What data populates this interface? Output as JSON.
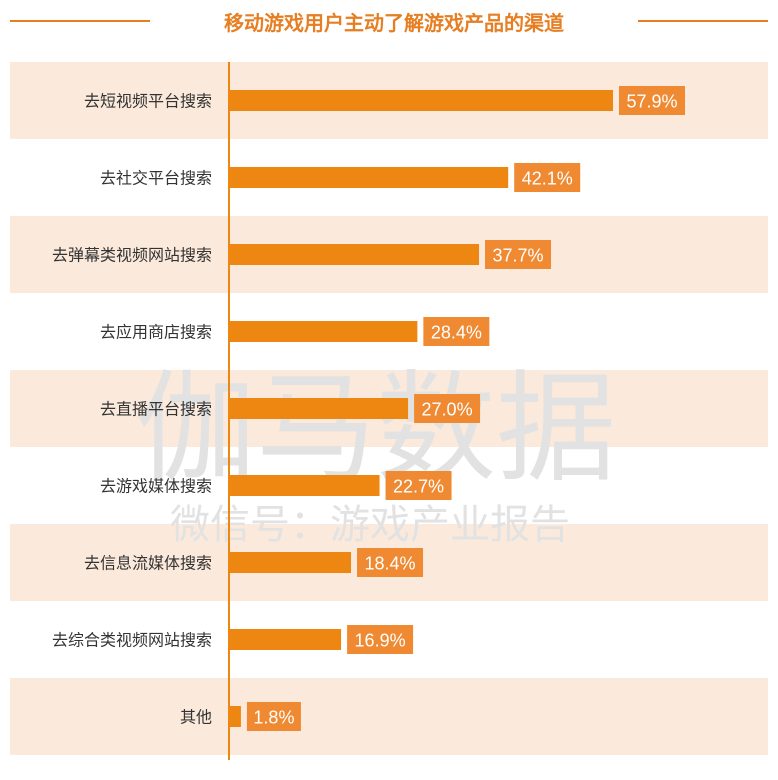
{
  "chart_data": {
    "type": "bar",
    "orientation": "horizontal",
    "title": "移动游戏用户主动了解游戏产品的渠道",
    "categories": [
      "去短视频平台搜索",
      "去社交平台搜索",
      "去弹幕类视频网站搜索",
      "去应用商店搜索",
      "去直播平台搜索",
      "去游戏媒体搜索",
      "去信息流媒体搜索",
      "去综合类视频网站搜索",
      "其他"
    ],
    "values": [
      57.9,
      42.1,
      37.7,
      28.4,
      27.0,
      22.7,
      18.4,
      16.9,
      1.8
    ],
    "value_labels": [
      "57.9%",
      "42.1%",
      "37.7%",
      "28.4%",
      "27.0%",
      "22.7%",
      "18.4%",
      "16.9%",
      "1.8%"
    ],
    "unit": "%",
    "xlim": [
      0,
      70
    ],
    "grid": false,
    "legend": "none",
    "row_banding": "alternating",
    "colors": {
      "title": "#e67e22",
      "bar": "#ee8712",
      "label_box": "#ef8a33",
      "band": "#fbeadc",
      "axis": "#ee8712",
      "category_text": "#333333",
      "watermark": "#e2e2e2"
    },
    "watermark": {
      "line1": "伽马数据",
      "line2": "微信号：游戏产业报告"
    }
  }
}
